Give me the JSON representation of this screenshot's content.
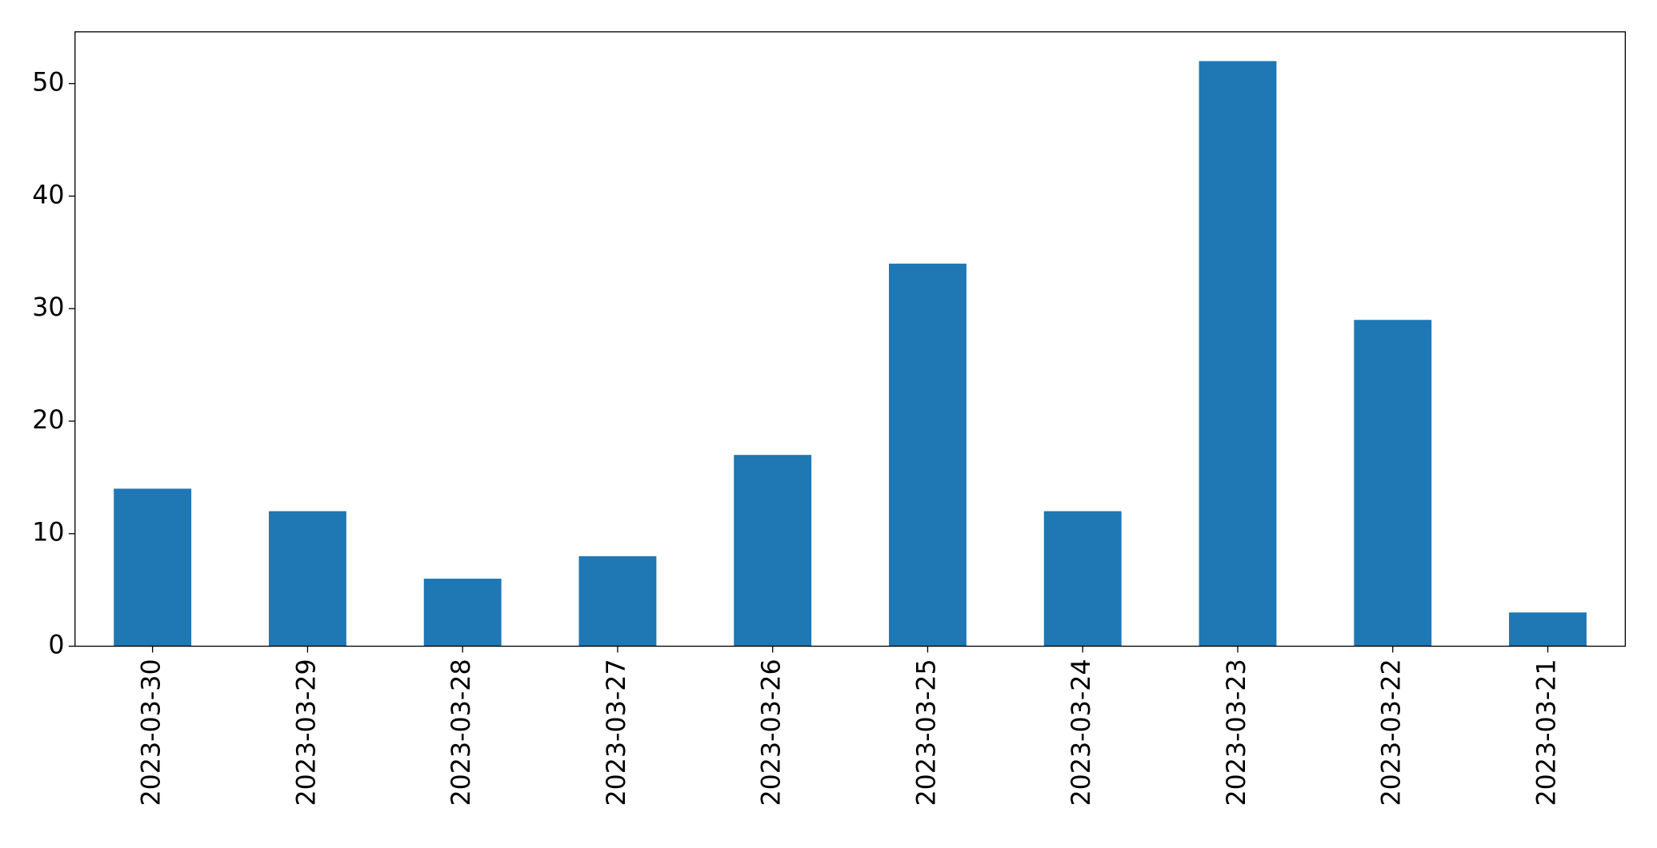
{
  "chart_data": {
    "type": "bar",
    "categories": [
      "2023-03-30",
      "2023-03-29",
      "2023-03-28",
      "2023-03-27",
      "2023-03-26",
      "2023-03-25",
      "2023-03-24",
      "2023-03-23",
      "2023-03-22",
      "2023-03-21"
    ],
    "values": [
      14,
      12,
      6,
      8,
      17,
      34,
      12,
      52,
      29,
      3
    ],
    "color": "#1f77b4",
    "ylim": [
      0,
      54.6
    ],
    "yticks": [
      0,
      10,
      20,
      30,
      40,
      50
    ],
    "grid": false
  }
}
